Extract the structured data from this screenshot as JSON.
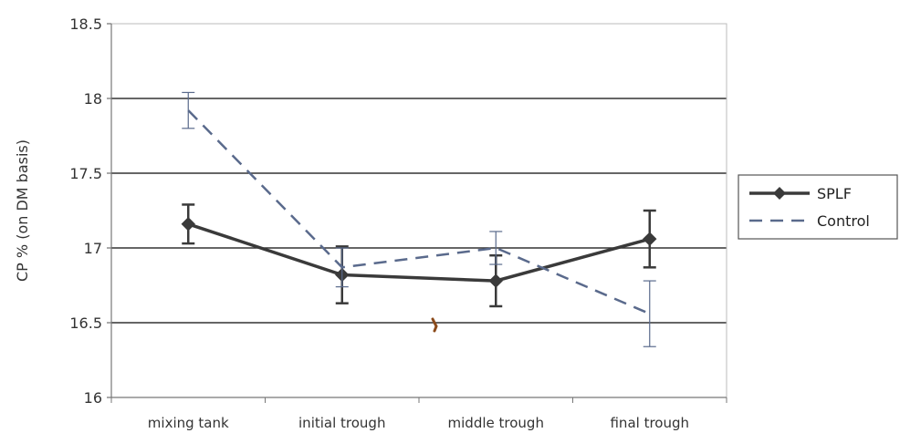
{
  "chart_data": {
    "type": "line",
    "title": "",
    "xlabel": "",
    "ylabel": "CP % (on DM basis)",
    "categories": [
      "mixing tank",
      "initial trough",
      "middle trough",
      "final trough"
    ],
    "ylim": [
      16,
      18.5
    ],
    "yticks": [
      "16",
      "16.5",
      "17",
      "17.5",
      "18",
      "18.5"
    ],
    "grid": true,
    "legend_position": "right",
    "series": [
      {
        "name": "SPLF",
        "style": "solid",
        "marker": "diamond",
        "color": "#3a3a3a",
        "values": [
          17.16,
          16.82,
          16.78,
          17.06
        ],
        "errors": [
          0.13,
          0.19,
          0.17,
          0.19
        ]
      },
      {
        "name": "Control",
        "style": "dashed",
        "marker": "none",
        "color": "#5a6a8c",
        "values": [
          17.92,
          16.87,
          17.0,
          16.56
        ],
        "errors": [
          0.12,
          0.13,
          0.11,
          0.22
        ]
      }
    ]
  }
}
